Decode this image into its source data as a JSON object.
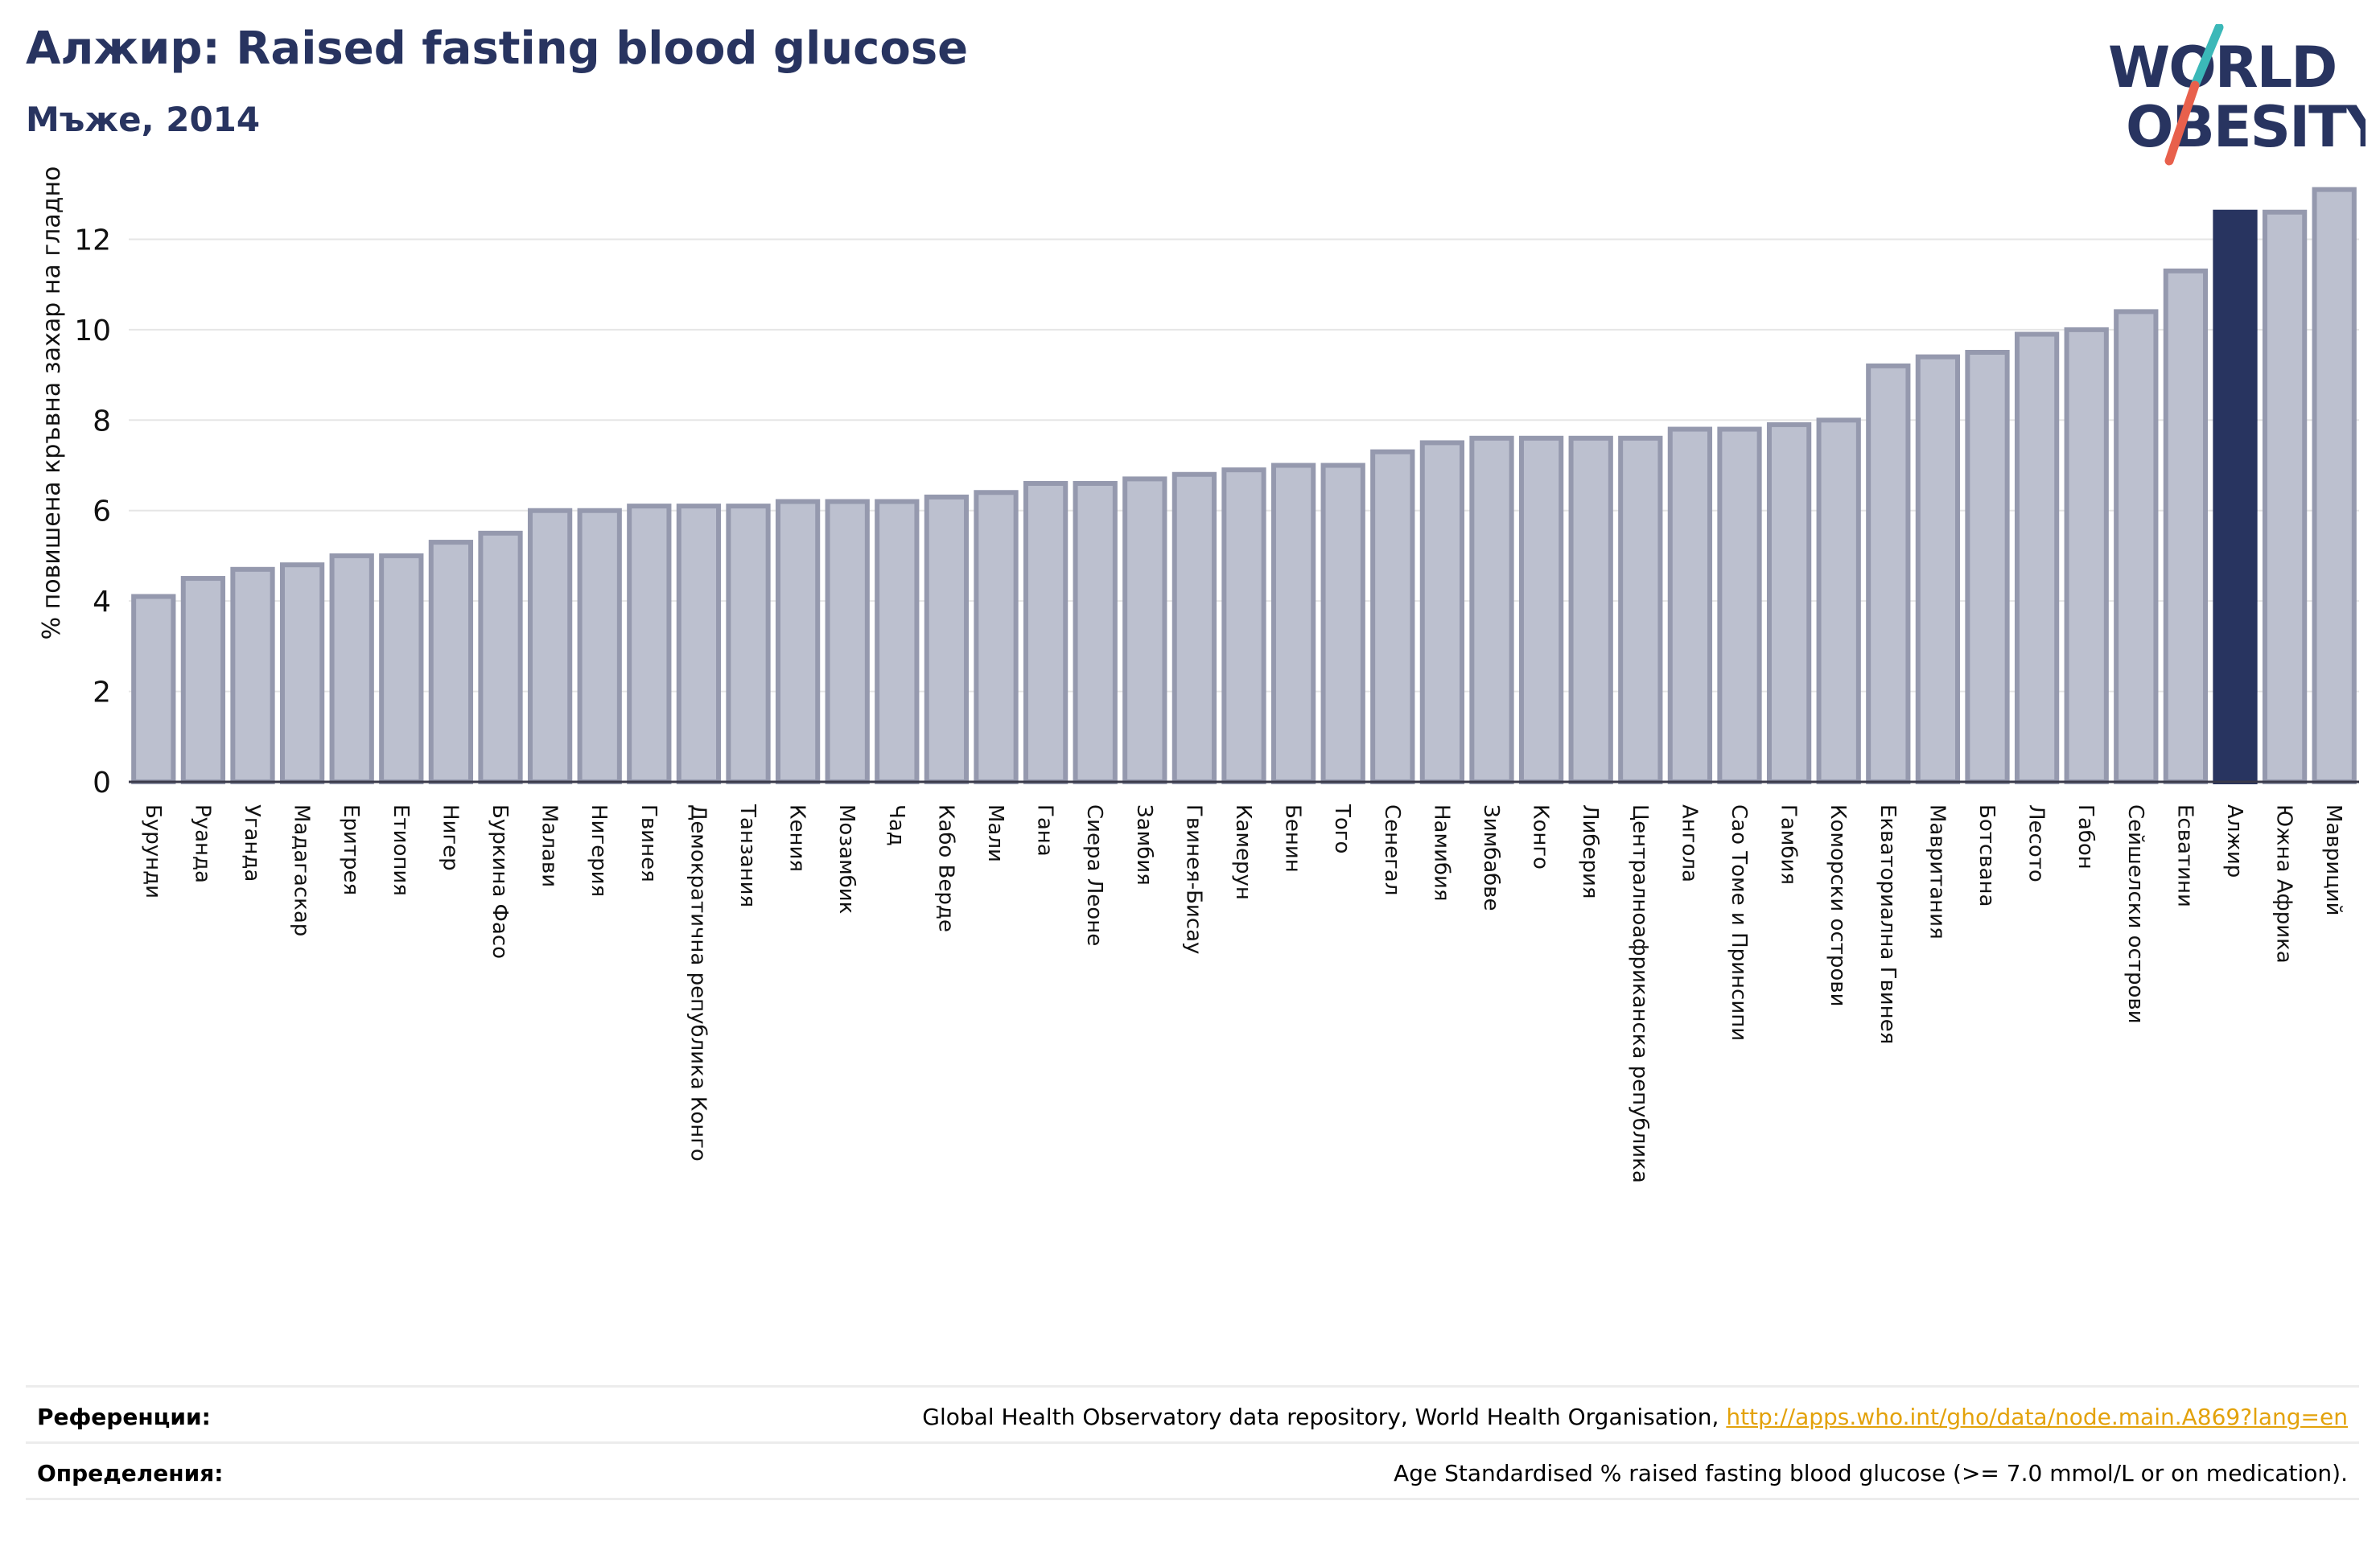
{
  "header": {
    "title": "Алжир: Raised fasting blood glucose",
    "subtitle": "Мъже, 2014"
  },
  "logo": {
    "line1": "WORLD",
    "line2": "OBESITY",
    "name": "world-obesity-logo"
  },
  "footer": {
    "references_label": "Референции:",
    "references_text": "Global Health Observatory data repository, World Health Organisation, ",
    "references_link": "http://apps.who.int/gho/data/node.main.A869?lang=en",
    "definitions_label": "Определения:",
    "definitions_text": "Age Standardised % raised fasting blood glucose (>= 7.0 mmol/L or on medication)."
  },
  "colors": {
    "bar_fill": "#bcc0cf",
    "bar_stroke": "#9599ae",
    "highlight": "#283460",
    "title": "#283460",
    "grid": "#e6e6e6",
    "logo_teal": "#3bb8b8",
    "logo_coral": "#e8604c"
  },
  "chart_data": {
    "type": "bar",
    "title": "Алжир: Raised fasting blood glucose",
    "subtitle": "Мъже, 2014",
    "ylabel": "% повишена кръвна захар на гладно",
    "xlabel": "",
    "ylim": [
      0,
      13.2
    ],
    "yticks": [
      0,
      2,
      4,
      6,
      8,
      10,
      12
    ],
    "grid": true,
    "highlight": "Алжир",
    "categories": [
      "Бурунди",
      "Руанда",
      "Уганда",
      "Мадагаскар",
      "Еритрея",
      "Етиопия",
      "Нигер",
      "Буркина Фасо",
      "Малави",
      "Нигерия",
      "Гвинея",
      "Демократична република Конго",
      "Танзания",
      "Кения",
      "Мозамбик",
      "Чад",
      "Кабо Верде",
      "Мали",
      "Гана",
      "Сиера Леоне",
      "Замбия",
      "Гвинея-Бисау",
      "Камерун",
      "Бенин",
      "Того",
      "Сенегал",
      "Намибия",
      "Зимбабве",
      "Конго",
      "Либерия",
      "Централноафриканска република",
      "Ангола",
      "Сао Томе и Принсипи",
      "Гамбия",
      "Коморски острови",
      "Екваториална Гвинея",
      "Мавритания",
      "Ботсвана",
      "Лесото",
      "Габон",
      "Сейшелски острови",
      "Есватини",
      "Алжир",
      "Южна Африка",
      "Мавриций"
    ],
    "values": [
      4.1,
      4.5,
      4.7,
      4.8,
      5.0,
      5.0,
      5.3,
      5.5,
      6.0,
      6.0,
      6.1,
      6.1,
      6.1,
      6.2,
      6.2,
      6.2,
      6.3,
      6.4,
      6.6,
      6.6,
      6.7,
      6.8,
      6.9,
      7.0,
      7.0,
      7.3,
      7.5,
      7.6,
      7.6,
      7.6,
      7.6,
      7.8,
      7.8,
      7.9,
      8.0,
      9.2,
      9.4,
      9.5,
      9.9,
      10.0,
      10.4,
      11.3,
      12.6,
      12.6,
      13.1
    ]
  }
}
